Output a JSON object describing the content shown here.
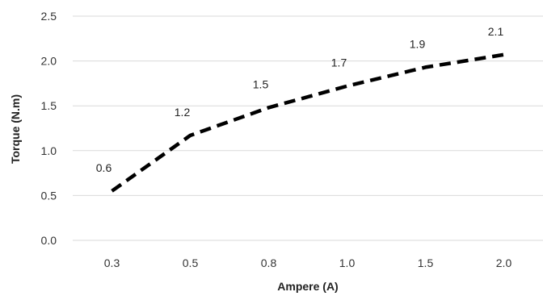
{
  "chart_data": {
    "type": "line",
    "categories": [
      "0.3",
      "0.5",
      "0.8",
      "1.0",
      "1.5",
      "2.0"
    ],
    "series": [
      {
        "values": [
          0.55,
          1.17,
          1.48,
          1.72,
          1.93,
          2.07
        ],
        "data_labels": [
          "0.6",
          "1.2",
          "1.5",
          "1.7",
          "1.9",
          "2.1"
        ],
        "line_style": "dashed",
        "color": "#000000"
      }
    ],
    "xlabel": "Ampere (A)",
    "ylabel": "Torque (N.m)",
    "ylim": [
      0,
      2.5
    ],
    "yticks": [
      "0.0",
      "0.5",
      "1.0",
      "1.5",
      "2.0",
      "2.5"
    ],
    "grid": "horizontal"
  }
}
